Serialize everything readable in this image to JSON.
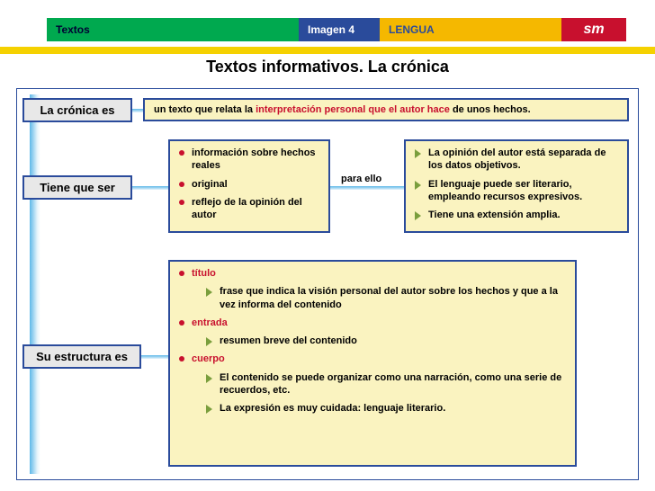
{
  "topbar": {
    "green": "Textos",
    "blue": "Imagen 4",
    "yellow": "LENGUA",
    "logo": "sm"
  },
  "title": "Textos informativos. La crónica",
  "labels": {
    "cronica": "La crónica es",
    "tiene": "Tiene que ser",
    "estructura": "Su estructura es"
  },
  "definition": {
    "pre": "un texto que relata la ",
    "highlight": "interpretación personal que el autor hace ",
    "post": "de unos hechos."
  },
  "requirements": {
    "left": [
      "información sobre hechos reales",
      "original",
      "reflejo de la opinión  del autor"
    ],
    "connector": "para ello",
    "right": [
      "La opinión del autor está separada de los datos objetivos.",
      "El lenguaje puede ser literario, empleando recursos expresivos.",
      "Tiene una extensión amplia."
    ]
  },
  "structure": {
    "items": [
      {
        "head": "título",
        "subs": [
          "frase que indica la visión personal del autor sobre los hechos y que a la vez informa del contenido"
        ]
      },
      {
        "head": "entrada",
        "subs": [
          "resumen breve del contenido"
        ]
      },
      {
        "head": "cuerpo",
        "subs": [
          "El contenido se puede organizar como una  narración, como una serie de recuerdos, etc.",
          "La expresión es muy cuidada: lenguaje literario."
        ]
      }
    ]
  },
  "colors": {
    "navy": "#2a4b9b",
    "red": "#c8102e",
    "yellowBox": "#faf3c0",
    "greyBox": "#e8e8e8"
  }
}
